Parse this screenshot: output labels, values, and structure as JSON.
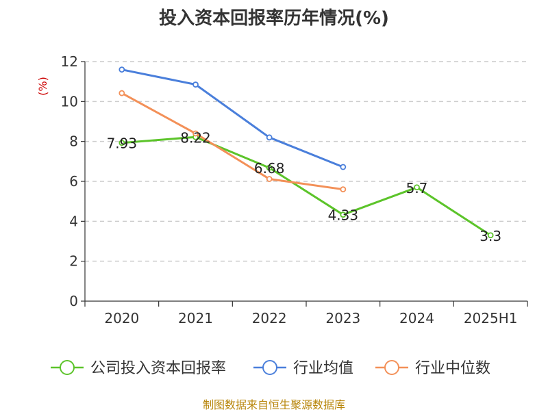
{
  "title": "投入资本回报率历年情况(%)",
  "source": "制图数据来自恒生聚源数据库",
  "chart_data": {
    "type": "line",
    "title": "投入资本回报率历年情况(%)",
    "ylabel": "(%)",
    "xlabel": "",
    "categories": [
      "2020",
      "2021",
      "2022",
      "2023",
      "2024",
      "2025H1"
    ],
    "ylim": [
      0,
      12
    ],
    "yticks": [
      0,
      2,
      4,
      6,
      8,
      10,
      12
    ],
    "grid": true,
    "legend_position": "bottom",
    "series": [
      {
        "name": "公司投入资本回报率",
        "color": "#5cc42a",
        "values": [
          7.93,
          8.22,
          6.68,
          4.33,
          5.7,
          3.3
        ],
        "labels": [
          "7.93",
          "8.22",
          "6.68",
          "4.33",
          "5.7",
          "3.3"
        ]
      },
      {
        "name": "行业均值",
        "color": "#4a7fdb",
        "values": [
          11.6,
          10.85,
          8.2,
          6.72,
          null,
          null
        ]
      },
      {
        "name": "行业中位数",
        "color": "#f39058",
        "values": [
          10.42,
          8.4,
          6.12,
          5.6,
          null,
          null
        ]
      }
    ]
  }
}
